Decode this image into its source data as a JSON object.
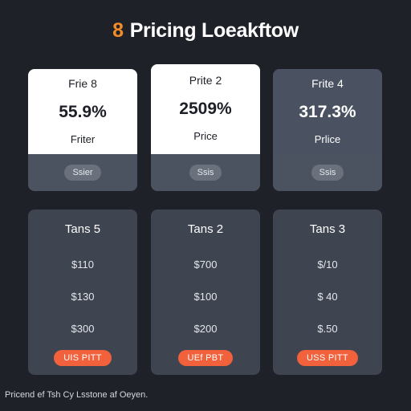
{
  "header": {
    "accent": "8",
    "title": "Pricing Loeakftow"
  },
  "top_cards": [
    {
      "label": "Frie 8",
      "value": "55.9%",
      "sub": "Friter",
      "pill": "Ssier"
    },
    {
      "label": "Prite 2",
      "value": "2509%",
      "sub": "Price",
      "pill": "Ssis"
    },
    {
      "label": "Frite 4",
      "value": "317.3%",
      "sub": "Prlice",
      "pill": "Ssis"
    }
  ],
  "tiers": [
    {
      "name": "Tans 5",
      "prices": [
        "$110",
        "$130",
        "$300"
      ],
      "cta": "UIS PITT"
    },
    {
      "name": "Tans 2",
      "prices": [
        "$700",
        "$100",
        "$200"
      ],
      "cta": "UEf PBT"
    },
    {
      "name": "Tans 3",
      "prices": [
        "$/10",
        "$ 40",
        "$.50"
      ],
      "cta": "USS PITT"
    }
  ],
  "footer": "Pricend ef Tsh Cy Lsstone af Oeyen.",
  "colors": {
    "background": "#1e2128",
    "accent": "#f28c28",
    "cta": "#f0613c"
  }
}
